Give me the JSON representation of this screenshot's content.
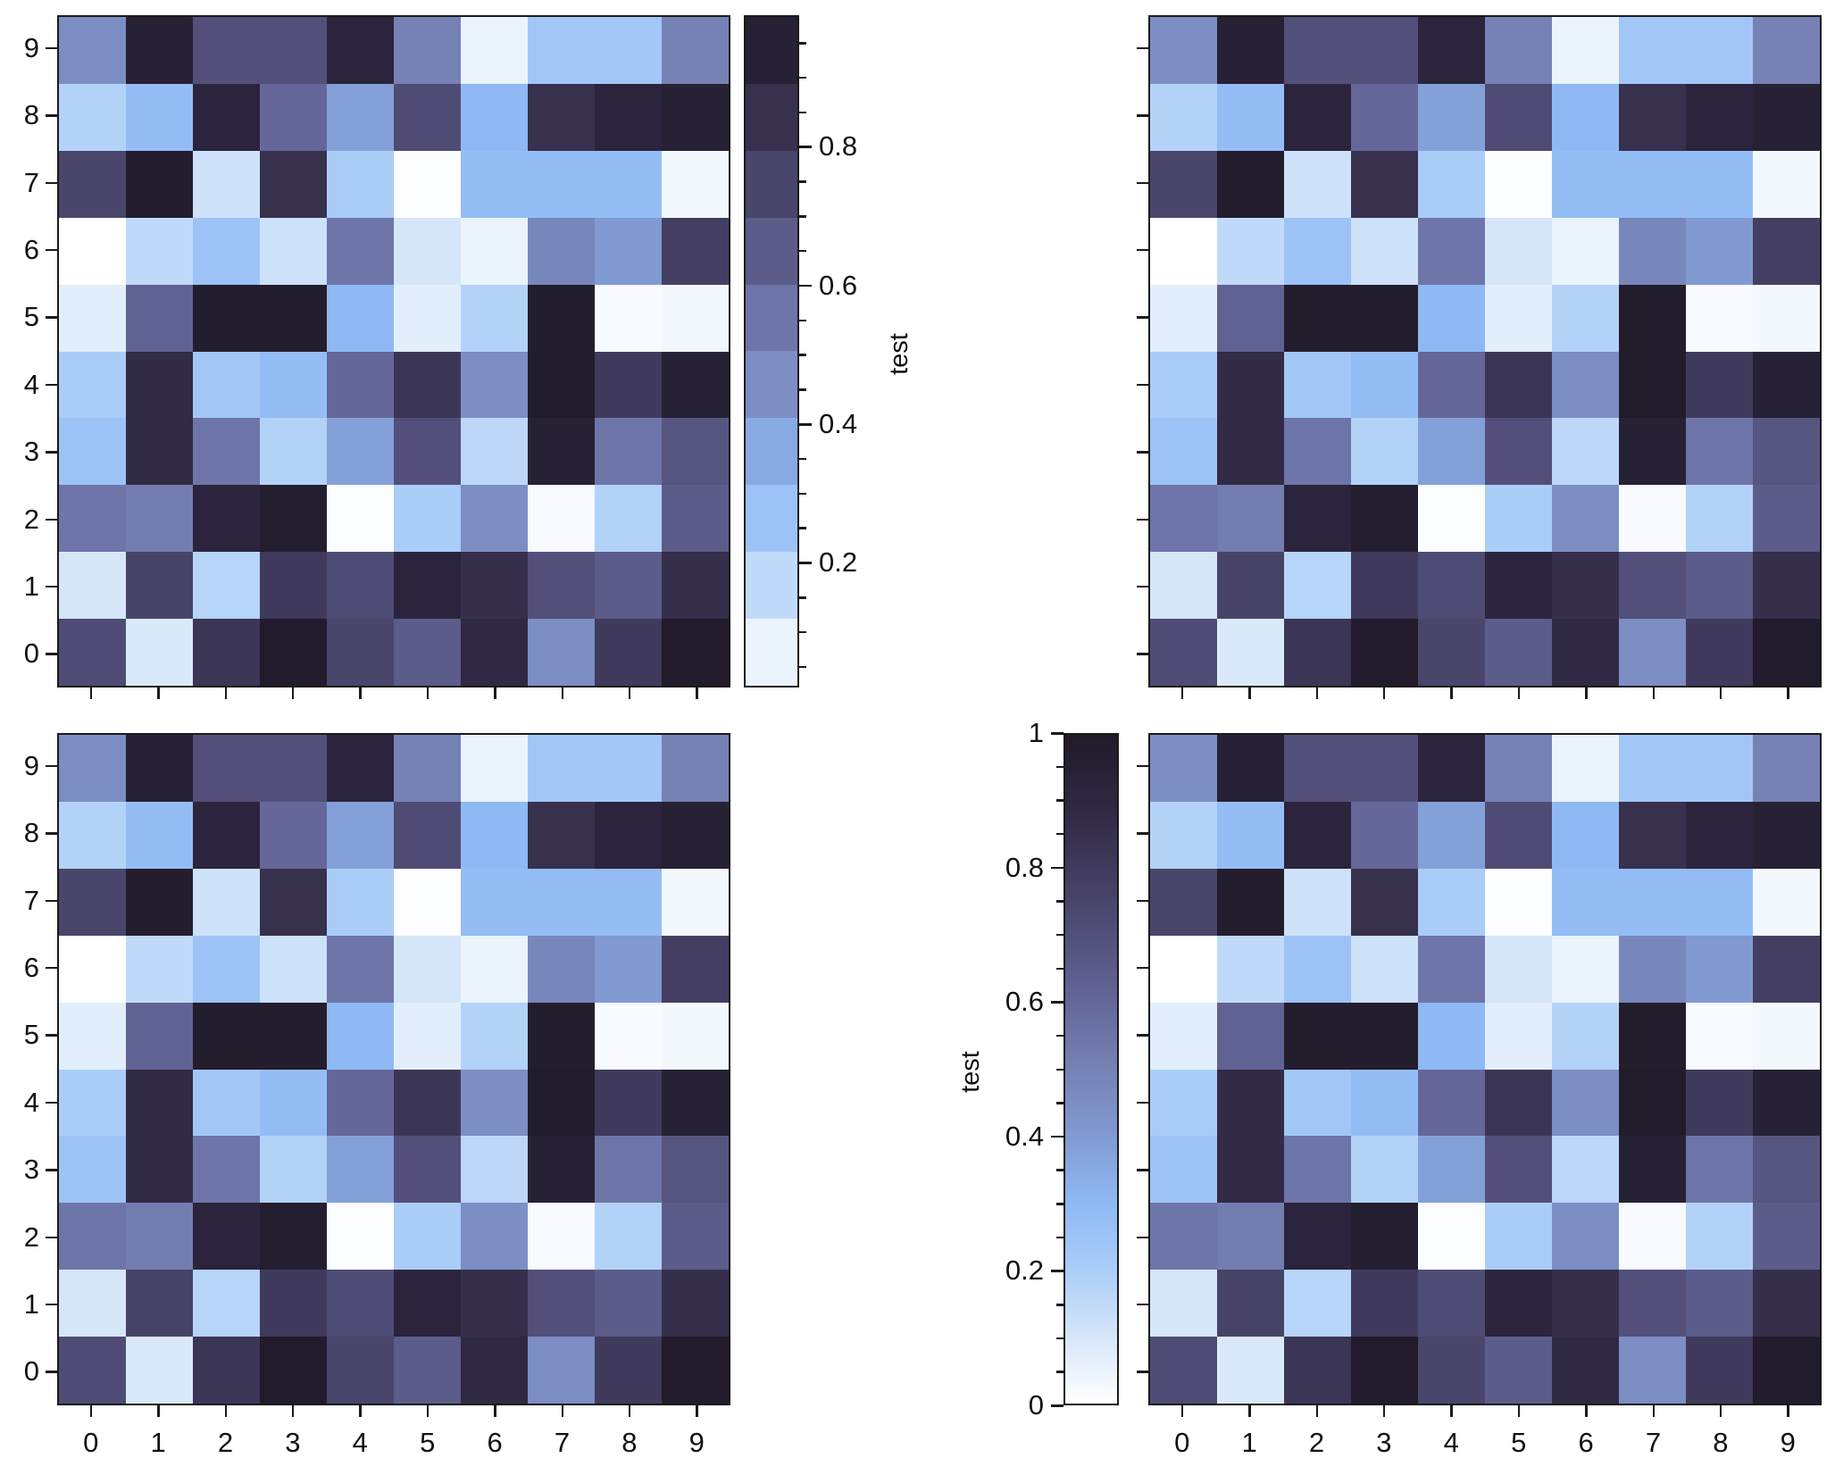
{
  "chart_data": {
    "type": "heatmap",
    "layout": "2x2 subplots, shared data",
    "x_ticks": [
      0,
      1,
      2,
      3,
      4,
      5,
      6,
      7,
      8,
      9
    ],
    "y_ticks": [
      0,
      1,
      2,
      3,
      4,
      5,
      6,
      7,
      8,
      9
    ],
    "values_rows_y0_to_y9": [
      [
        0.72,
        0.09,
        0.82,
        0.99,
        0.75,
        0.65,
        0.89,
        0.45,
        0.8,
        0.99
      ],
      [
        0.1,
        0.76,
        0.17,
        0.8,
        0.72,
        0.92,
        0.86,
        0.7,
        0.65,
        0.86
      ],
      [
        0.55,
        0.52,
        0.92,
        0.97,
        0.01,
        0.2,
        0.45,
        0.02,
        0.18,
        0.65
      ],
      [
        0.25,
        0.88,
        0.55,
        0.18,
        0.38,
        0.7,
        0.16,
        0.95,
        0.55,
        0.68
      ],
      [
        0.2,
        0.88,
        0.23,
        0.28,
        0.6,
        0.82,
        0.45,
        0.99,
        0.8,
        0.95
      ],
      [
        0.07,
        0.62,
        0.98,
        0.98,
        0.3,
        0.07,
        0.18,
        0.98,
        0.02,
        0.03
      ],
      [
        0.0,
        0.15,
        0.25,
        0.12,
        0.55,
        0.1,
        0.05,
        0.48,
        0.4,
        0.78
      ],
      [
        0.75,
        0.98,
        0.12,
        0.85,
        0.2,
        0.01,
        0.28,
        0.28,
        0.28,
        0.03
      ],
      [
        0.18,
        0.28,
        0.92,
        0.6,
        0.38,
        0.72,
        0.3,
        0.85,
        0.92,
        0.95
      ],
      [
        0.45,
        0.95,
        0.7,
        0.7,
        0.92,
        0.5,
        0.05,
        0.23,
        0.23,
        0.5
      ]
    ],
    "colormap": [
      "#ffffff",
      "#d6e6f9",
      "#aacdf8",
      "#8fb9f4",
      "#819ad1",
      "#7682b5",
      "#65679a",
      "#52507a",
      "#403a5c",
      "#2e2740",
      "#201a2a"
    ],
    "panels": [
      {
        "position": "top-left",
        "colorbar": "right",
        "colorbar_type": "discrete",
        "colorbar_levels": 10,
        "colorbar_range": [
          0.02,
          0.99
        ],
        "colorbar_ticks": [
          "0.2",
          "0.4",
          "0.6",
          "0.8"
        ],
        "colorbar_label": "test",
        "xticklabels": false,
        "yticklabels": true
      },
      {
        "position": "top-right",
        "colorbar": "none",
        "xticklabels": false,
        "yticklabels": false
      },
      {
        "position": "bottom-left",
        "colorbar": "none",
        "xticklabels": true,
        "yticklabels": true
      },
      {
        "position": "bottom-right",
        "colorbar": "left",
        "colorbar_type": "continuous",
        "colorbar_range": [
          0,
          1
        ],
        "colorbar_ticks": [
          "0",
          "0.2",
          "0.4",
          "0.6",
          "0.8",
          "1"
        ],
        "colorbar_label": "test",
        "xticklabels": true,
        "yticklabels": false
      }
    ]
  },
  "labels": {
    "cbar_top": "test",
    "cbar_bottom": "test",
    "ticks": [
      "0",
      "1",
      "2",
      "3",
      "4",
      "5",
      "6",
      "7",
      "8",
      "9"
    ],
    "cbar_top_ticks": [
      "0.2",
      "0.4",
      "0.6",
      "0.8"
    ],
    "cbar_bottom_ticks": [
      "0",
      "0.2",
      "0.4",
      "0.6",
      "0.8",
      "1"
    ]
  }
}
